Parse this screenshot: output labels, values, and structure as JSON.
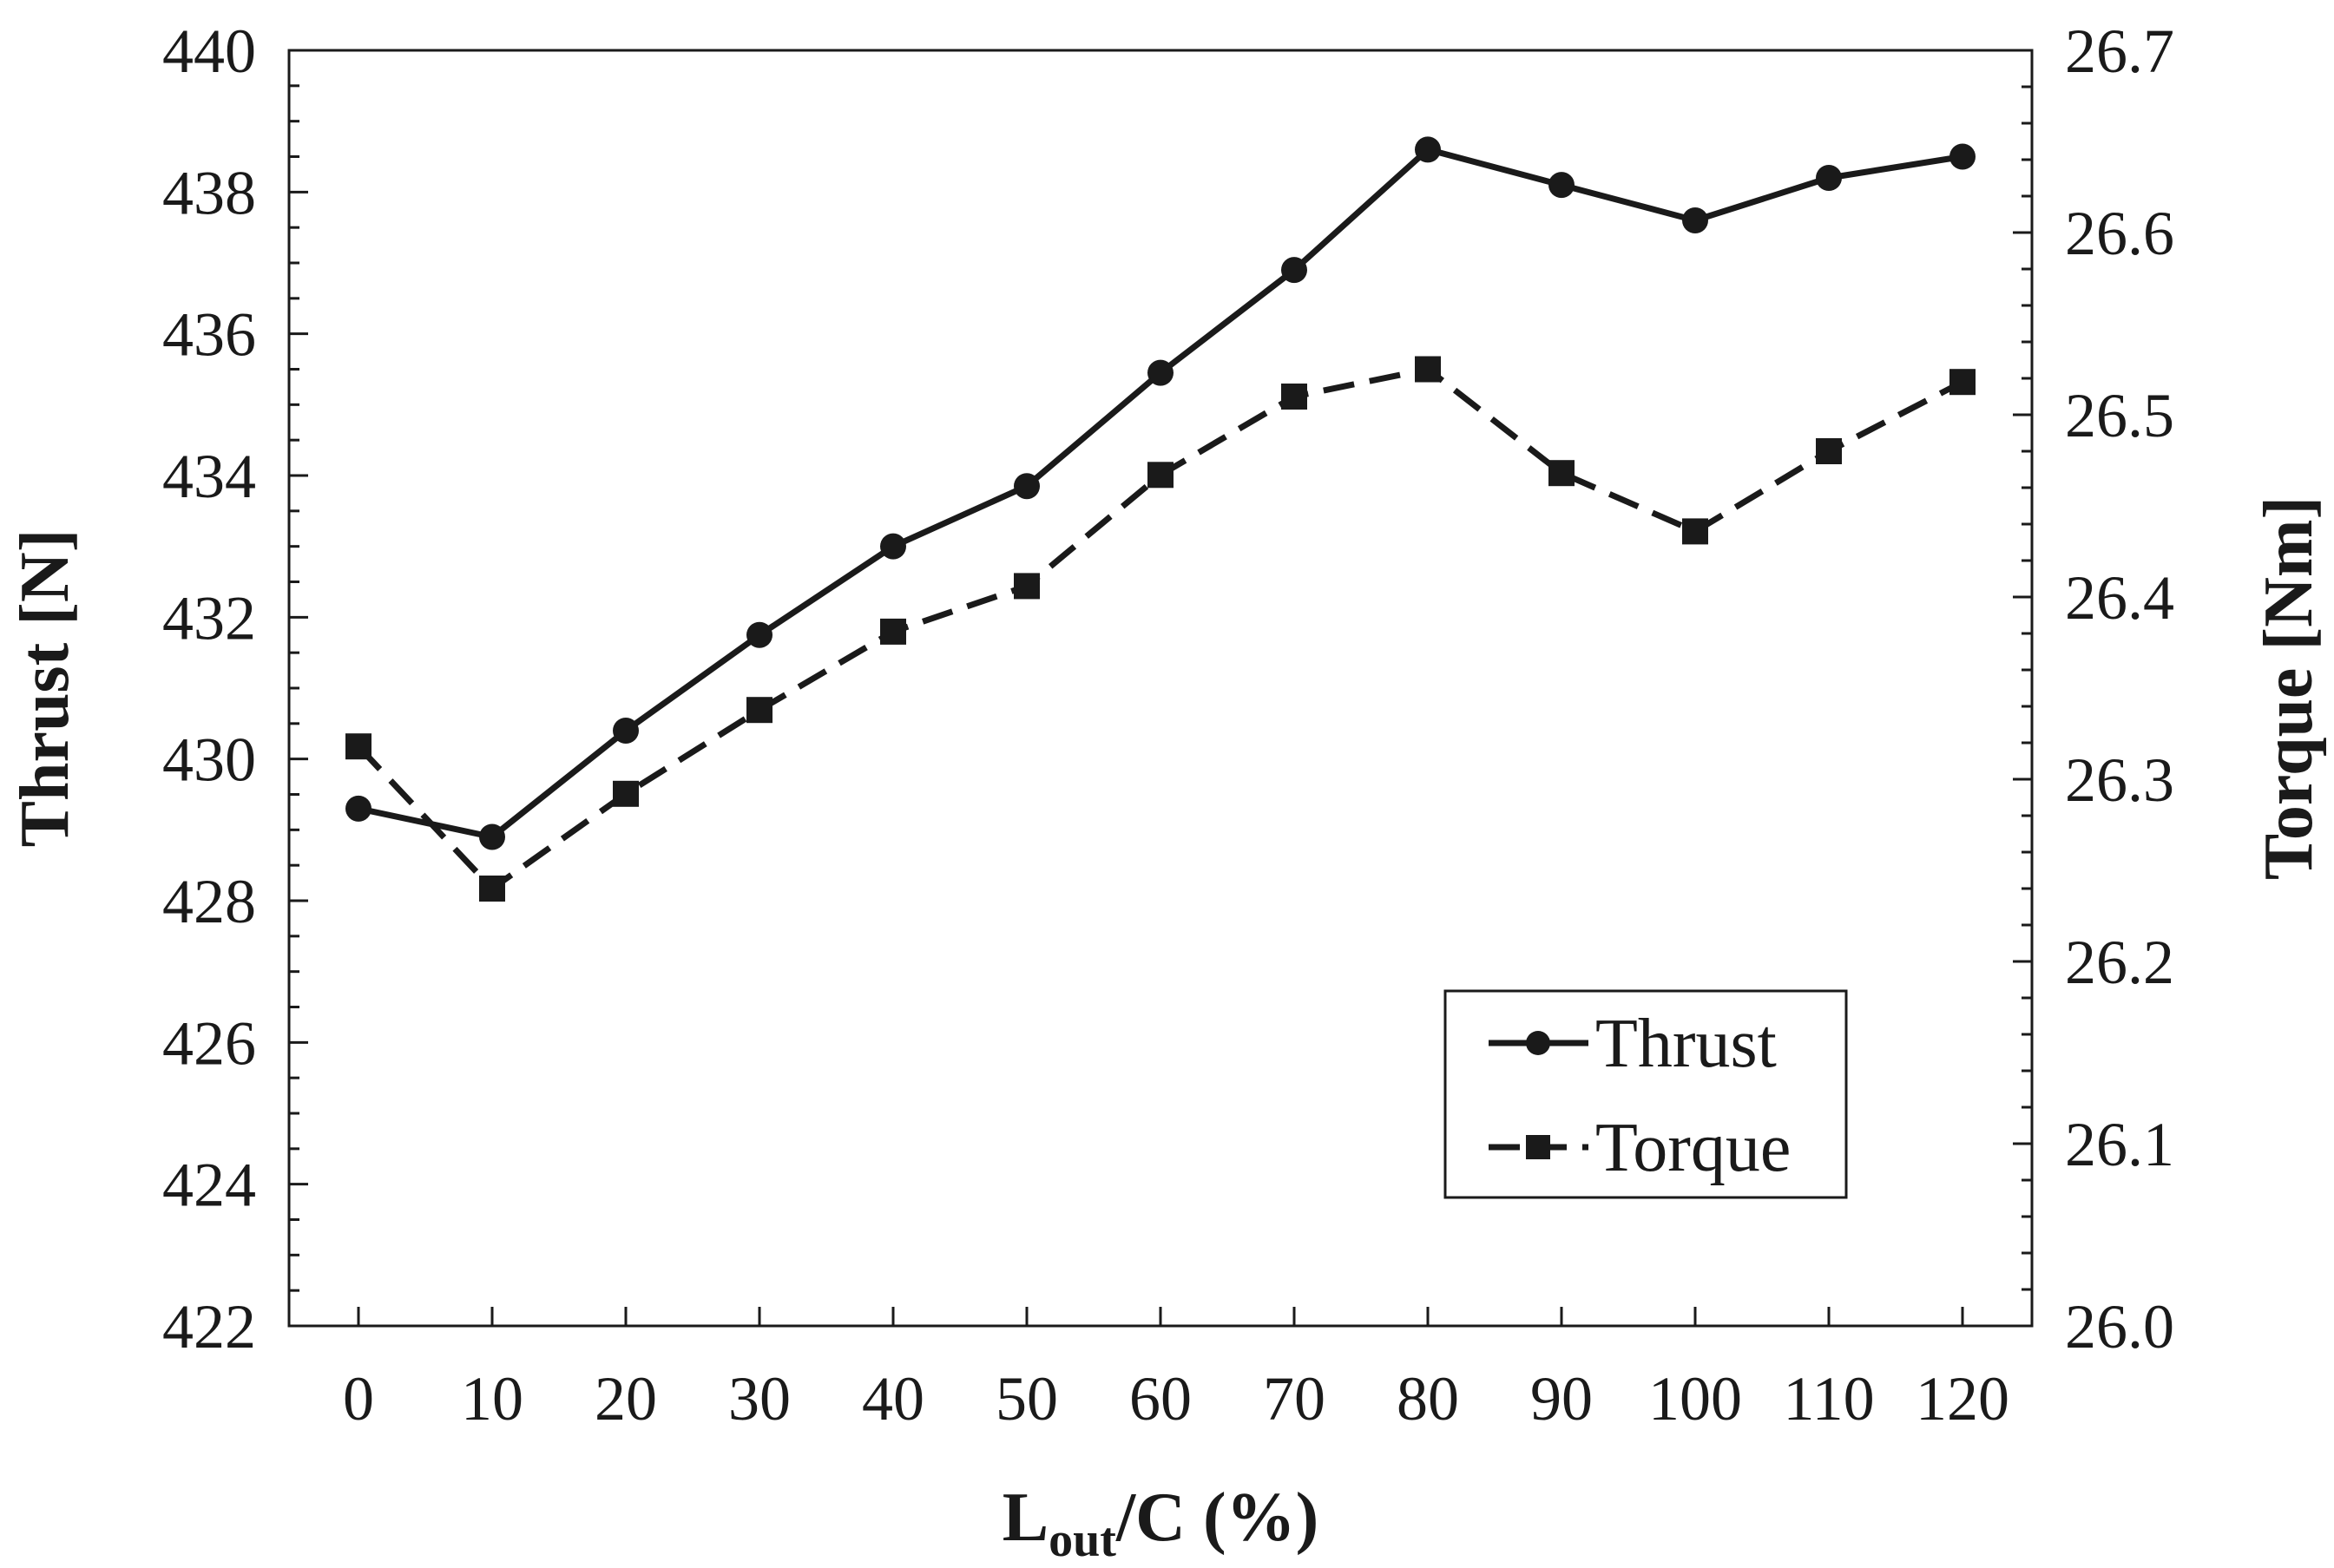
{
  "chart_data": {
    "type": "line",
    "x": [
      0,
      10,
      20,
      30,
      40,
      50,
      60,
      70,
      80,
      90,
      100,
      110,
      120
    ],
    "x_tick_labels": [
      "0",
      "10",
      "20",
      "30",
      "40",
      "50",
      "60",
      "70",
      "80",
      "90",
      "100",
      "110",
      "120"
    ],
    "xlabel": {
      "main": "L",
      "sub": "out",
      "rest": "/C (%)"
    },
    "ylabel_left": "Thrust [N]",
    "ylabel_right": "Torque [Nm]",
    "ylim_left": [
      422,
      440
    ],
    "ylim_right": [
      26.0,
      26.7
    ],
    "y_left_ticks": [
      "422",
      "424",
      "426",
      "428",
      "430",
      "432",
      "434",
      "436",
      "438",
      "440"
    ],
    "y_right_ticks": [
      "26.0",
      "26.1",
      "26.2",
      "26.3",
      "26.4",
      "26.5",
      "26.6",
      "26.7"
    ],
    "grid": false,
    "legend_position": "bottom-right",
    "series": [
      {
        "name": "Thrust",
        "axis": "left",
        "line_style": "solid",
        "marker": "circle",
        "values": [
          429.3,
          428.9,
          430.4,
          431.75,
          433.0,
          433.85,
          435.45,
          436.9,
          438.6,
          438.1,
          437.6,
          438.2,
          438.5
        ]
      },
      {
        "name": "Torque",
        "axis": "right",
        "line_style": "dashed",
        "marker": "square",
        "values": [
          26.318,
          26.24,
          26.292,
          26.338,
          26.381,
          26.406,
          26.467,
          26.51,
          26.525,
          26.468,
          26.436,
          26.48,
          26.518
        ]
      }
    ]
  }
}
